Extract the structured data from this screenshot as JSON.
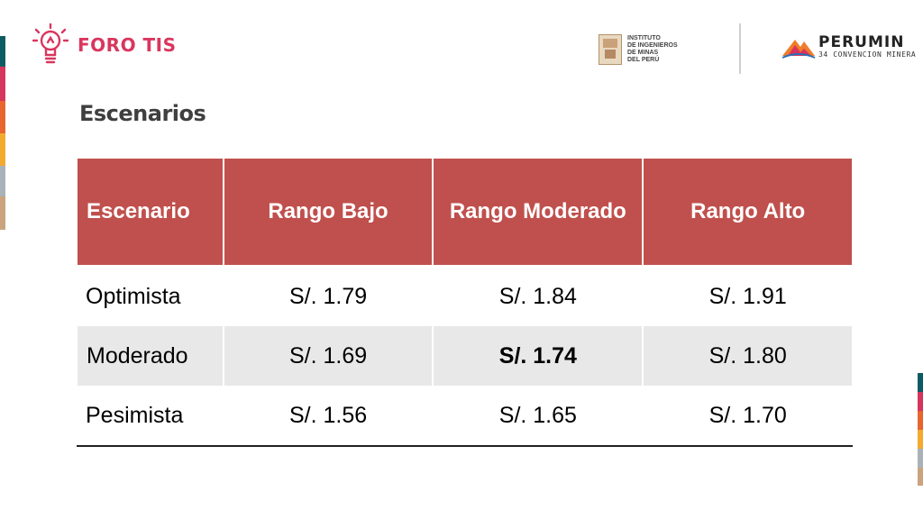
{
  "brand": {
    "name": "FORO TIS",
    "color": "#d9365e"
  },
  "institute_logo": {
    "text": "INSTITUTO\nDE INGENIEROS\nDE MINAS\nDEL PERÚ"
  },
  "perumin_logo": {
    "name": "PERUMIN",
    "subtitle": "34 CONVENCION MINERA"
  },
  "page_title": "Escenarios",
  "table": {
    "headers": [
      "Escenario",
      "Rango Bajo",
      "Rango Moderado",
      "Rango Alto"
    ],
    "rows": [
      [
        "Optimista",
        "S/. 1.79",
        "S/. 1.84",
        "S/. 1.91"
      ],
      [
        "Moderado",
        "S/. 1.69",
        "S/. 1.74",
        "S/. 1.80"
      ],
      [
        "Pesimista",
        "S/. 1.56",
        "S/. 1.65",
        "S/. 1.70"
      ]
    ],
    "header_color": "#c0504d",
    "highlighted_cell": "S/. 1.74"
  },
  "stripe_colors": [
    "#0e5c63",
    "#d6355d",
    "#e8652f",
    "#f2ab2f",
    "#a9b2b9",
    "#c9a47e"
  ]
}
